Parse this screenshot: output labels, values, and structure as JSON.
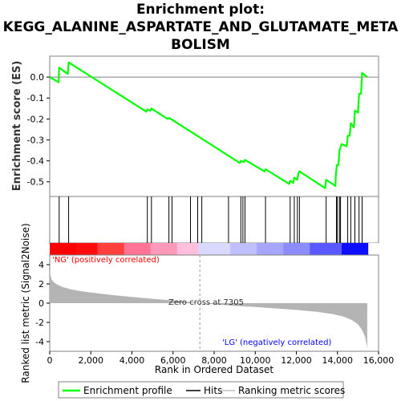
{
  "title_line1": "Enrichment plot:",
  "title_line2": "KEGG_ALANINE_ASPARTATE_AND_GLUTAMATE_META",
  "title_line3": "BOLISM",
  "ylabel_top": "Enrichment score (ES)",
  "ylabel_bottom": "Ranked list metric (Signal2Noise)",
  "xlabel": "Rank in Ordered Dataset",
  "label_pos": "'NG' (positively correlated)",
  "label_neg": "'LG' (negatively correlated)",
  "zero_cross": "Zero cross at 7305",
  "legend": {
    "enrichment": "Enrichment profile",
    "hits": "Hits",
    "ranking": "Ranking metric scores"
  },
  "colors": {
    "es_line": "#00ff00",
    "pos_label": "#ff0000",
    "neg_label": "#0000ff"
  },
  "chart_data": {
    "type": "line",
    "x_max": 15500,
    "xlim": [
      0,
      16000
    ],
    "x_ticks": [
      0,
      2000,
      4000,
      6000,
      8000,
      10000,
      12000,
      14000,
      16000
    ],
    "x_tick_labels": [
      "0",
      "2,000",
      "4,000",
      "6,000",
      "8,000",
      "10,000",
      "12,000",
      "14,000",
      "16,000"
    ],
    "es_ylim": [
      -0.57,
      0.1
    ],
    "es_ticks": [
      0.0,
      -0.1,
      -0.2,
      -0.3,
      -0.4,
      -0.5
    ],
    "es_tick_labels": [
      "0.0",
      "-0.1",
      "-0.2",
      "-0.3",
      "-0.4",
      "-0.5"
    ],
    "es_profile": [
      [
        0,
        0.0
      ],
      [
        430,
        -0.025
      ],
      [
        460,
        0.045
      ],
      [
        880,
        0.015
      ],
      [
        920,
        0.07
      ],
      [
        4700,
        -0.165
      ],
      [
        4750,
        -0.155
      ],
      [
        4900,
        -0.16
      ],
      [
        4950,
        -0.15
      ],
      [
        5750,
        -0.2
      ],
      [
        5800,
        -0.195
      ],
      [
        5900,
        -0.2
      ],
      [
        9250,
        -0.41
      ],
      [
        9300,
        -0.4
      ],
      [
        9450,
        -0.405
      ],
      [
        9500,
        -0.395
      ],
      [
        10450,
        -0.45
      ],
      [
        10500,
        -0.44
      ],
      [
        11650,
        -0.51
      ],
      [
        11700,
        -0.495
      ],
      [
        11850,
        -0.505
      ],
      [
        11900,
        -0.48
      ],
      [
        12050,
        -0.49
      ],
      [
        12100,
        -0.46
      ],
      [
        12150,
        -0.45
      ],
      [
        13400,
        -0.53
      ],
      [
        13450,
        -0.49
      ],
      [
        13900,
        -0.52
      ],
      [
        13920,
        -0.47
      ],
      [
        13970,
        -0.42
      ],
      [
        14050,
        -0.42
      ],
      [
        14100,
        -0.35
      ],
      [
        14200,
        -0.32
      ],
      [
        14450,
        -0.33
      ],
      [
        14500,
        -0.28
      ],
      [
        14600,
        -0.28
      ],
      [
        14650,
        -0.22
      ],
      [
        14800,
        -0.24
      ],
      [
        14850,
        -0.16
      ],
      [
        15000,
        -0.17
      ],
      [
        15050,
        -0.08
      ],
      [
        15150,
        -0.08
      ],
      [
        15200,
        0.02
      ],
      [
        15450,
        0.0
      ]
    ],
    "hits": [
      460,
      920,
      4750,
      4950,
      5800,
      5950,
      6850,
      7200,
      7400,
      8700,
      9300,
      9400,
      9500,
      10500,
      11700,
      11900,
      12050,
      12150,
      13450,
      13950,
      14000,
      14100,
      14150,
      14500,
      14650,
      14850,
      15050,
      15200
    ],
    "metric_ylim": [
      -5,
      5
    ],
    "metric_ticks": [
      4,
      2,
      0,
      -2,
      -4
    ],
    "metric_tick_labels": [
      "4",
      "2",
      "0",
      "-2",
      "-4"
    ],
    "metric_profile": [
      [
        0,
        3.2
      ],
      [
        100,
        2.4
      ],
      [
        300,
        2.0
      ],
      [
        600,
        1.7
      ],
      [
        1000,
        1.45
      ],
      [
        1500,
        1.25
      ],
      [
        2000,
        1.1
      ],
      [
        3000,
        0.85
      ],
      [
        4000,
        0.65
      ],
      [
        5000,
        0.45
      ],
      [
        6000,
        0.28
      ],
      [
        7000,
        0.08
      ],
      [
        7305,
        0.0
      ],
      [
        8000,
        -0.12
      ],
      [
        9000,
        -0.28
      ],
      [
        10000,
        -0.4
      ],
      [
        11000,
        -0.55
      ],
      [
        12000,
        -0.7
      ],
      [
        13000,
        -0.9
      ],
      [
        13800,
        -1.15
      ],
      [
        14300,
        -1.4
      ],
      [
        14700,
        -1.75
      ],
      [
        15000,
        -2.2
      ],
      [
        15200,
        -2.8
      ],
      [
        15350,
        -3.5
      ],
      [
        15450,
        -4.7
      ]
    ],
    "zero_cross": 7305
  }
}
